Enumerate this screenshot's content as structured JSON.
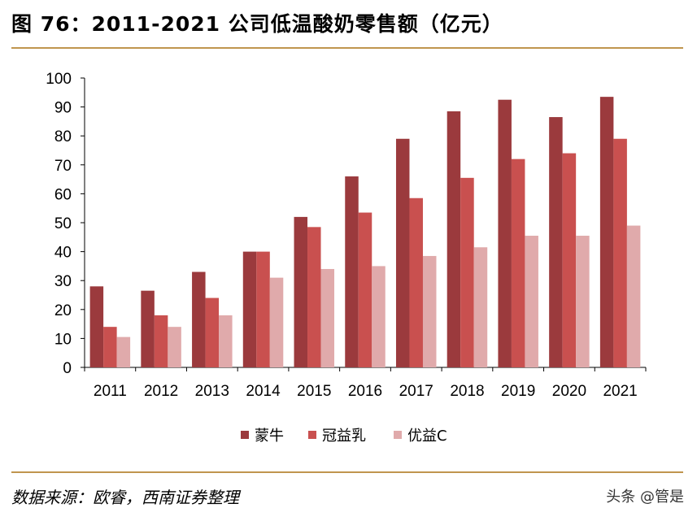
{
  "header": {
    "title": "图 76：2011-2021 公司低温酸奶零售额（亿元）"
  },
  "footer": {
    "source": "数据来源：欧睿，西南证券整理",
    "watermark": "头条 @管是"
  },
  "colors": {
    "series": [
      "#9b3a3d",
      "#c9504f",
      "#e0aaab"
    ],
    "rule": "#c0954e",
    "axis": "#000000"
  },
  "chart_data": {
    "type": "bar",
    "title": "2011-2021 公司低温酸奶零售额（亿元）",
    "xlabel": "",
    "ylabel": "",
    "ylim": [
      0,
      100
    ],
    "yticks": [
      0,
      10,
      20,
      30,
      40,
      50,
      60,
      70,
      80,
      90,
      100
    ],
    "grid": false,
    "legend_position": "bottom",
    "categories": [
      "2011",
      "2012",
      "2013",
      "2014",
      "2015",
      "2016",
      "2017",
      "2018",
      "2019",
      "2020",
      "2021"
    ],
    "series": [
      {
        "name": "蒙牛",
        "values": [
          28,
          26.5,
          33,
          40,
          52,
          66,
          79,
          88.5,
          92.5,
          86.5,
          93.5
        ]
      },
      {
        "name": "冠益乳",
        "values": [
          14,
          18,
          24,
          40,
          48.5,
          53.5,
          58.5,
          65.5,
          72,
          74,
          79
        ]
      },
      {
        "name": "优益C",
        "values": [
          10.5,
          14,
          18,
          31,
          34,
          35,
          38.5,
          41.5,
          45.5,
          45.5,
          49
        ]
      }
    ]
  }
}
